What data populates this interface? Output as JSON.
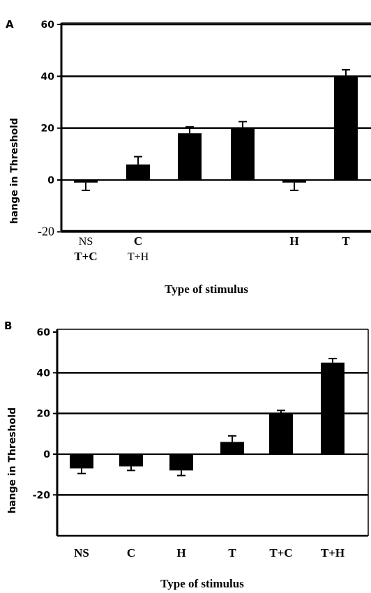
{
  "chart_data": [
    {
      "panel": "A",
      "type": "bar",
      "xlabel": "Type of stimulus",
      "ylabel": "hange in Threshold",
      "ylim": [
        -20,
        60
      ],
      "yticks": [
        "60",
        "40",
        "20",
        "0",
        "-20"
      ],
      "grid": true,
      "x_tick_labels": [
        {
          "line1": "NS",
          "line2": "T+C"
        },
        {
          "line1": "C",
          "line2": "T+H"
        },
        {
          "line1": "",
          "line2": ""
        },
        {
          "line1": "",
          "line2": ""
        },
        {
          "line1": "H",
          "line2": ""
        },
        {
          "line1": "T",
          "line2": ""
        }
      ],
      "values": [
        -1,
        6,
        18,
        20,
        -1,
        40
      ],
      "errors": [
        3,
        3,
        2.5,
        2.5,
        3,
        2.5
      ]
    },
    {
      "panel": "B",
      "type": "bar",
      "xlabel": "Type of stimulus",
      "ylabel": "hange in Threshold",
      "ylim": [
        -30,
        60
      ],
      "yticks": [
        "60",
        "40",
        "20",
        "0",
        "-20"
      ],
      "grid": true,
      "categories": [
        "NS",
        "C",
        "H",
        "T",
        "T+C",
        "T+H"
      ],
      "values": [
        -7,
        -6,
        -8,
        6,
        20,
        45
      ],
      "errors": [
        2.5,
        2,
        2.5,
        3,
        1.5,
        2
      ]
    }
  ]
}
